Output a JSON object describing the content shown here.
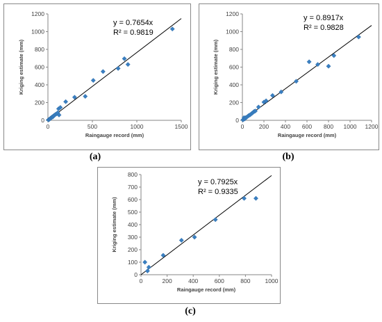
{
  "chart_data": [
    {
      "panel": "(a)",
      "type": "scatter",
      "xlabel": "Raingauge record (mm)",
      "ylabel": "Kriging estimate (mm)",
      "xlim": [
        0,
        1500
      ],
      "ylim": [
        0,
        1200
      ],
      "xticks": [
        0,
        500,
        1000,
        1500
      ],
      "yticks": [
        0,
        200,
        400,
        600,
        800,
        1000,
        1200
      ],
      "equation": "y = 0.7654x",
      "r2": "R² = 0.9819",
      "trendline_slope": 0.7654,
      "marker_color": "#3a7fc1",
      "points": [
        [
          5,
          5
        ],
        [
          10,
          8
        ],
        [
          15,
          10
        ],
        [
          20,
          15
        ],
        [
          25,
          20
        ],
        [
          30,
          22
        ],
        [
          35,
          28
        ],
        [
          40,
          30
        ],
        [
          45,
          35
        ],
        [
          50,
          40
        ],
        [
          55,
          38
        ],
        [
          60,
          45
        ],
        [
          65,
          50
        ],
        [
          70,
          55
        ],
        [
          80,
          62
        ],
        [
          90,
          70
        ],
        [
          100,
          75
        ],
        [
          110,
          85
        ],
        [
          120,
          130
        ],
        [
          125,
          60
        ],
        [
          140,
          145
        ],
        [
          200,
          210
        ],
        [
          300,
          260
        ],
        [
          420,
          270
        ],
        [
          510,
          450
        ],
        [
          620,
          550
        ],
        [
          790,
          585
        ],
        [
          860,
          695
        ],
        [
          900,
          630
        ],
        [
          1400,
          1030
        ]
      ]
    },
    {
      "panel": "(b)",
      "type": "scatter",
      "xlabel": "Raingauge record (mm)",
      "ylabel": "Kriging estimate (mm)",
      "xlim": [
        0,
        1200
      ],
      "ylim": [
        0,
        1200
      ],
      "xticks": [
        0,
        200,
        400,
        600,
        800,
        1000,
        1200
      ],
      "yticks": [
        0,
        200,
        400,
        600,
        800,
        1000,
        1200
      ],
      "equation": "y = 0.8917x",
      "r2": "R² = 0.9828",
      "trendline_slope": 0.8917,
      "marker_color": "#3a7fc1",
      "points": [
        [
          5,
          5
        ],
        [
          10,
          10
        ],
        [
          15,
          30
        ],
        [
          20,
          15
        ],
        [
          25,
          20
        ],
        [
          30,
          30
        ],
        [
          40,
          35
        ],
        [
          50,
          45
        ],
        [
          60,
          55
        ],
        [
          70,
          60
        ],
        [
          80,
          70
        ],
        [
          90,
          80
        ],
        [
          100,
          90
        ],
        [
          110,
          100
        ],
        [
          120,
          105
        ],
        [
          150,
          150
        ],
        [
          200,
          205
        ],
        [
          220,
          220
        ],
        [
          280,
          280
        ],
        [
          360,
          320
        ],
        [
          500,
          440
        ],
        [
          620,
          660
        ],
        [
          700,
          630
        ],
        [
          800,
          610
        ],
        [
          850,
          730
        ],
        [
          1080,
          940
        ]
      ]
    },
    {
      "panel": "(c)",
      "type": "scatter",
      "xlabel": "Raingauge record (mm)",
      "ylabel": "Kriging estimate (mm)",
      "xlim": [
        0,
        1000
      ],
      "ylim": [
        0,
        800
      ],
      "xticks": [
        0,
        200,
        400,
        600,
        800,
        1000
      ],
      "yticks": [
        0,
        100,
        200,
        300,
        400,
        500,
        600,
        700,
        800
      ],
      "equation": "y = 0.7925x",
      "r2": "R² = 0.9335",
      "trendline_slope": 0.7925,
      "marker_color": "#3a7fc1",
      "points": [
        [
          30,
          100
        ],
        [
          50,
          30
        ],
        [
          60,
          60
        ],
        [
          170,
          155
        ],
        [
          310,
          275
        ],
        [
          410,
          300
        ],
        [
          570,
          440
        ],
        [
          790,
          610
        ],
        [
          880,
          610
        ]
      ]
    }
  ],
  "captions": [
    "(a)",
    "(b)",
    "(c)"
  ]
}
